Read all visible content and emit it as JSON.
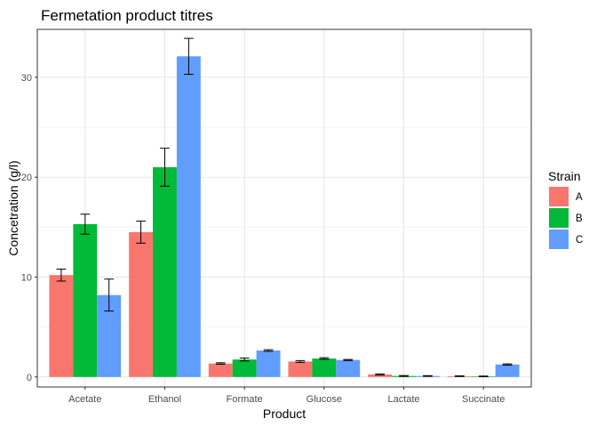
{
  "chart_data": {
    "type": "bar",
    "title": "Fermetation product titres",
    "xlabel": "Product",
    "ylabel": "Concetration (g/l)",
    "categories": [
      "Acetate",
      "Ethanol",
      "Formate",
      "Glucose",
      "Lactate",
      "Succinate"
    ],
    "series": [
      {
        "name": "A",
        "color": "#F8766D",
        "values": [
          10.2,
          14.5,
          1.35,
          1.55,
          0.25,
          0.08
        ],
        "errors": [
          0.6,
          1.1,
          0.07,
          0.09,
          0.06,
          0.03
        ]
      },
      {
        "name": "B",
        "color": "#00BA38",
        "values": [
          15.3,
          21.0,
          1.75,
          1.85,
          0.1,
          0.06
        ],
        "errors": [
          1.0,
          1.9,
          0.15,
          0.08,
          0.04,
          0.03
        ]
      },
      {
        "name": "C",
        "color": "#619CFF",
        "values": [
          8.2,
          32.1,
          2.65,
          1.7,
          0.1,
          1.25
        ],
        "errors": [
          1.6,
          1.8,
          0.08,
          0.05,
          0.03,
          0.06
        ]
      }
    ],
    "yticks": [
      0,
      10,
      20,
      30
    ],
    "ylim": [
      -1.0,
      34.8
    ],
    "grid": true,
    "legend": {
      "title": "Strain",
      "position": "right"
    }
  }
}
